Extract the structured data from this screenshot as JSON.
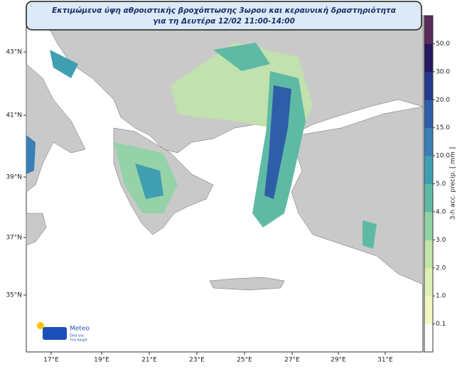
{
  "title": {
    "line1": "Εκτιμώμενα ύψη αθροιστικής βροχόπτωσης 3ωρου και κεραυνική δραστηριότητα",
    "line2": "για τη Δευτέρα 12/02 11:00-14:00"
  },
  "map": {
    "lat_labels": [
      "43°N",
      "41°N",
      "39°N",
      "37°N",
      "35°N"
    ],
    "lon_labels": [
      "17°E",
      "19°E",
      "21°E",
      "23°E",
      "25°E",
      "27°E",
      "29°E",
      "31°E"
    ]
  },
  "colorbar": {
    "label": "3-h acc. precip. [ mm ]",
    "ticks": [
      "0.1",
      "1.0",
      "2.0",
      "3.0",
      "4.0",
      "5.0",
      "10.0",
      "15.0",
      "20.0",
      "30.0",
      "50.0"
    ]
  },
  "logo": {
    "name": "Meteo",
    "line1": "Όλα για",
    "line2": "τον καιρό"
  }
}
